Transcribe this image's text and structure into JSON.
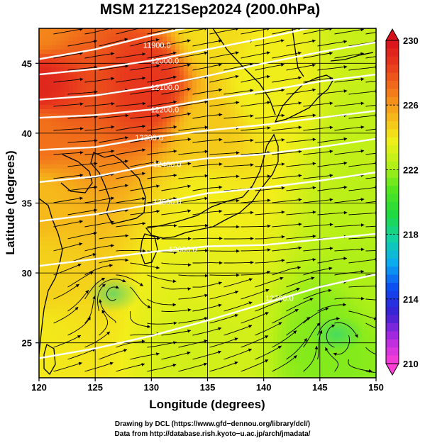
{
  "chart_data": {
    "type": "heatmap",
    "title": "MSM 21Z21Sep2024 (200.0hPa)",
    "xlabel": "Longitude (degrees)",
    "ylabel": "Latitude  (degrees)",
    "xlim": [
      120,
      150
    ],
    "ylim": [
      22.5,
      47.5
    ],
    "x_ticks": [
      120,
      125,
      130,
      135,
      140,
      145,
      150
    ],
    "y_ticks": [
      25,
      30,
      35,
      40,
      45
    ],
    "grid": true,
    "colorbar": {
      "range": [
        210,
        230
      ],
      "ticks": [
        210,
        214,
        218,
        222,
        226,
        230
      ],
      "extend": "both",
      "colors": [
        "#ff3fd6",
        "#b12ce0",
        "#3b1fd2",
        "#0d48f0",
        "#0aa9f2",
        "#11d2a6",
        "#1fd83f",
        "#55e51e",
        "#b6f018",
        "#f2ee1a",
        "#f6b21a",
        "#f2741a",
        "#e83a1c",
        "#d7111c"
      ]
    },
    "temperature_field": [
      {
        "lat": 47.5,
        "lon": 120,
        "value": 226.5
      },
      {
        "lat": 47.5,
        "lon": 135,
        "value": 224.3
      },
      {
        "lat": 47.5,
        "lon": 150,
        "value": 222.8
      },
      {
        "lat": 43.5,
        "lon": 120,
        "value": 229.2
      },
      {
        "lat": 43.5,
        "lon": 130,
        "value": 228.6
      },
      {
        "lat": 43.5,
        "lon": 140,
        "value": 223.8
      },
      {
        "lat": 40,
        "lon": 120,
        "value": 227.0
      },
      {
        "lat": 40,
        "lon": 135,
        "value": 224.8
      },
      {
        "lat": 40,
        "lon": 150,
        "value": 222.6
      },
      {
        "lat": 35,
        "lon": 120,
        "value": 225.2
      },
      {
        "lat": 35,
        "lon": 135,
        "value": 223.9
      },
      {
        "lat": 35,
        "lon": 150,
        "value": 222.4
      },
      {
        "lat": 30,
        "lon": 120,
        "value": 224.6
      },
      {
        "lat": 30,
        "lon": 135,
        "value": 223.5
      },
      {
        "lat": 30,
        "lon": 150,
        "value": 222.2
      },
      {
        "lat": 25,
        "lon": 120,
        "value": 224.0
      },
      {
        "lat": 25,
        "lon": 135,
        "value": 223.0
      },
      {
        "lat": 25,
        "lon": 146,
        "value": 221.5
      }
    ],
    "contours": [
      {
        "label": "11900.0",
        "points": [
          [
            120,
            45.3
          ],
          [
            125,
            46.0
          ],
          [
            130,
            47.0
          ],
          [
            133,
            47.5
          ]
        ],
        "label_at": [
          130.5,
          46.3
        ]
      },
      {
        "label": "12000.0",
        "points": [
          [
            120,
            44.2
          ],
          [
            125,
            44.6
          ],
          [
            130,
            45.2
          ],
          [
            135,
            46.0
          ],
          [
            140,
            46.8
          ],
          [
            144,
            47.5
          ]
        ],
        "label_at": [
          131.2,
          45.2
        ]
      },
      {
        "label": "12100.0",
        "points": [
          [
            120,
            42.4
          ],
          [
            125,
            42.7
          ],
          [
            130,
            43.3
          ],
          [
            135,
            44.1
          ],
          [
            140,
            45.0
          ],
          [
            145,
            45.8
          ],
          [
            150,
            46.5
          ]
        ],
        "label_at": [
          131.2,
          43.3
        ]
      },
      {
        "label": "12200.0",
        "points": [
          [
            120,
            41.1
          ],
          [
            125,
            41.3
          ],
          [
            130,
            41.7
          ],
          [
            135,
            42.4
          ],
          [
            140,
            43.0
          ],
          [
            145,
            43.7
          ],
          [
            150,
            44.2
          ]
        ],
        "label_at": [
          131.2,
          41.7
        ]
      },
      {
        "label": "12300.0",
        "points": [
          [
            120,
            38.8
          ],
          [
            125,
            39.0
          ],
          [
            130,
            39.7
          ],
          [
            135,
            40.2
          ],
          [
            140,
            40.6
          ],
          [
            145,
            41.1
          ],
          [
            150,
            41.6
          ]
        ],
        "label_at": [
          129.8,
          39.7
        ]
      },
      {
        "label": "12400.0",
        "points": [
          [
            120,
            36.5
          ],
          [
            125,
            36.9
          ],
          [
            130,
            37.7
          ],
          [
            135,
            38.2
          ],
          [
            140,
            38.5
          ],
          [
            145,
            39.0
          ],
          [
            150,
            39.6
          ]
        ],
        "label_at": [
          131.4,
          37.8
        ]
      },
      {
        "label": "12500.0",
        "points": [
          [
            120,
            33.7
          ],
          [
            125,
            34.2
          ],
          [
            130,
            34.9
          ],
          [
            135,
            35.7
          ],
          [
            140,
            36.1
          ],
          [
            145,
            36.6
          ],
          [
            150,
            37.2
          ]
        ],
        "label_at": [
          131.4,
          35.1
        ]
      },
      {
        "label": "12600.0",
        "points": [
          [
            120,
            30.5
          ],
          [
            125,
            31.0
          ],
          [
            130,
            31.5
          ],
          [
            135,
            31.9
          ],
          [
            140,
            32.0
          ],
          [
            145,
            32.4
          ],
          [
            150,
            32.8
          ]
        ],
        "label_at": [
          132.8,
          31.7
        ]
      },
      {
        "label": "12700.0",
        "points": [
          [
            120,
            23.9
          ],
          [
            125,
            24.6
          ],
          [
            130,
            25.5
          ],
          [
            135,
            26.6
          ],
          [
            140,
            27.8
          ],
          [
            145,
            29.0
          ],
          [
            150,
            29.9
          ]
        ],
        "label_at": [
          141.4,
          28.2
        ]
      }
    ],
    "vortices": [
      {
        "lon": 146.5,
        "lat": 25.6
      },
      {
        "lon": 126.6,
        "lat": 28.5
      }
    ]
  },
  "credits": {
    "line1": "Drawing by DCL (https://www.gfd−dennou.org/library/dcl/)",
    "line2": "Data from http://database.rish.kyoto−u.ac.jp/arch/jmadata/"
  }
}
